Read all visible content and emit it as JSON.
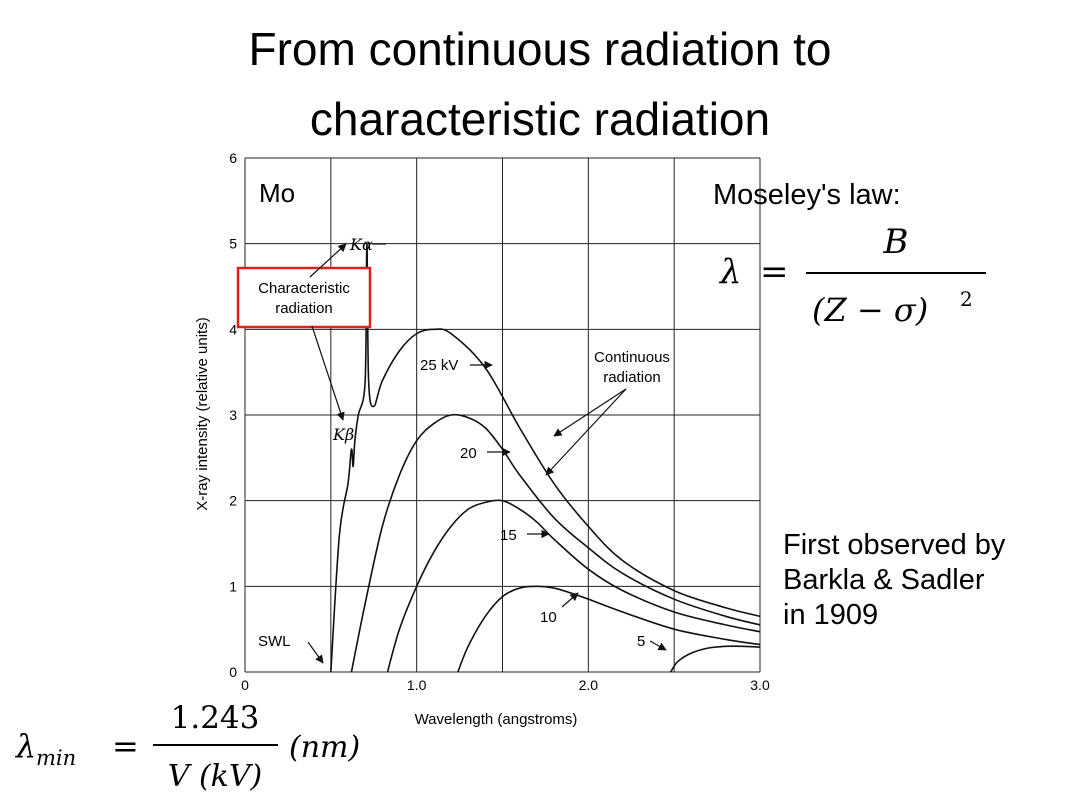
{
  "slide": {
    "title_line1": "From continuous radiation to",
    "title_line2": "characteristic radiation",
    "element_label": "Mo",
    "moseley_label": "Moseley's law:",
    "moseley_formula": {
      "lhs": "λ",
      "eq": "=",
      "numerator": "B",
      "denominator_open": "(Z − σ)",
      "denominator_exp": "2"
    },
    "first_observed": [
      "First observed by",
      "Barkla & Sadler",
      "in 1909"
    ],
    "lambda_min_formula": {
      "lhs": "λ",
      "sub": "min",
      "eq": "=",
      "numerator": "1.243",
      "denominator": "V (kV)",
      "unit": "(nm)"
    }
  },
  "chart_data": {
    "type": "line",
    "xlabel": "Wavelength (angstroms)",
    "ylabel": "X-ray intensity (relative units)",
    "xlim": [
      0,
      3.0
    ],
    "ylim": [
      0,
      6
    ],
    "x_ticks": [
      "0",
      "1.0",
      "2.0",
      "3.0"
    ],
    "y_ticks": [
      "0",
      "1",
      "2",
      "3",
      "4",
      "5",
      "6"
    ],
    "grid": true,
    "series": [
      {
        "name": "25 kV",
        "x": [
          0.5,
          0.55,
          0.6,
          0.62,
          0.63,
          0.64,
          0.66,
          0.7,
          0.71,
          0.72,
          0.75,
          0.8,
          0.9,
          1.0,
          1.1,
          1.2,
          1.4,
          1.6,
          1.8,
          2.0,
          2.2,
          2.5,
          2.8,
          3.0
        ],
        "y": [
          0,
          1.6,
          2.2,
          2.6,
          2.4,
          2.7,
          3.0,
          3.4,
          5.0,
          3.4,
          3.1,
          3.4,
          3.75,
          3.95,
          4.0,
          3.95,
          3.55,
          2.85,
          2.2,
          1.7,
          1.3,
          0.95,
          0.75,
          0.65
        ]
      },
      {
        "name": "20",
        "x": [
          0.62,
          0.7,
          0.8,
          0.9,
          1.0,
          1.1,
          1.2,
          1.3,
          1.4,
          1.5,
          1.6,
          1.8,
          2.0,
          2.2,
          2.5,
          2.8,
          3.0
        ],
        "y": [
          0,
          0.8,
          1.7,
          2.3,
          2.7,
          2.9,
          3.0,
          2.97,
          2.85,
          2.6,
          2.3,
          1.8,
          1.45,
          1.15,
          0.85,
          0.65,
          0.55
        ]
      },
      {
        "name": "15",
        "x": [
          0.83,
          0.9,
          1.0,
          1.1,
          1.2,
          1.3,
          1.4,
          1.5,
          1.6,
          1.7,
          1.8,
          2.0,
          2.2,
          2.5,
          2.8,
          3.0
        ],
        "y": [
          0,
          0.5,
          1.0,
          1.4,
          1.7,
          1.9,
          1.98,
          2.0,
          1.9,
          1.75,
          1.55,
          1.2,
          0.95,
          0.7,
          0.55,
          0.47
        ]
      },
      {
        "name": "10",
        "x": [
          1.24,
          1.3,
          1.4,
          1.5,
          1.6,
          1.7,
          1.8,
          1.9,
          2.0,
          2.2,
          2.5,
          2.8,
          3.0
        ],
        "y": [
          0,
          0.3,
          0.65,
          0.88,
          0.98,
          1.0,
          0.98,
          0.92,
          0.85,
          0.7,
          0.5,
          0.38,
          0.32
        ]
      },
      {
        "name": "5",
        "x": [
          2.48,
          2.52,
          2.6,
          2.7,
          2.8,
          2.9,
          3.0
        ],
        "y": [
          0,
          0.12,
          0.22,
          0.28,
          0.3,
          0.3,
          0.29
        ]
      }
    ],
    "annotations": {
      "k_alpha": "Kα",
      "k_beta": "Kβ",
      "characteristic": [
        "Characteristic",
        "radiation"
      ],
      "continuous": [
        "Continuous",
        "radiation"
      ],
      "swl": "SWL",
      "label_25": "25 kV",
      "label_20": "20",
      "label_15": "15",
      "label_10": "10",
      "label_5": "5"
    },
    "colors": {
      "highlight_box": "#e0201b",
      "curve": "#111111",
      "grid": "#222222"
    }
  }
}
